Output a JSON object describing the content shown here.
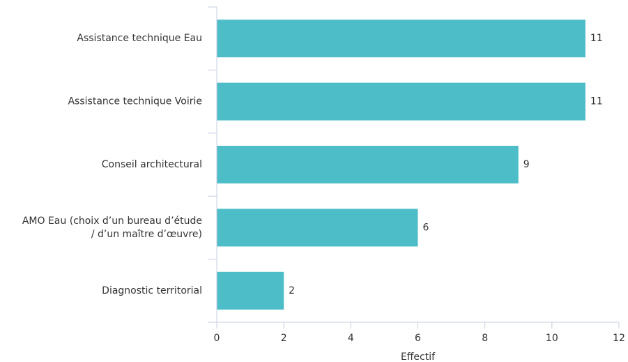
{
  "chart_data": {
    "type": "bar",
    "orientation": "horizontal",
    "categories": [
      [
        "Assistance technique Eau"
      ],
      [
        "Assistance technique Voirie"
      ],
      [
        "Conseil architectural"
      ],
      [
        "AMO Eau (choix d’un bureau d’étude",
        "/ d’un maître d’œuvre)"
      ],
      [
        "Diagnostic territorial"
      ]
    ],
    "values": [
      11,
      11,
      9,
      6,
      2
    ],
    "value_labels": [
      "11",
      "11",
      "9",
      "6",
      "2"
    ],
    "xlabel": "Effectif",
    "ylabel": "",
    "xlim": [
      0,
      12
    ],
    "xticks": [
      0,
      2,
      4,
      6,
      8,
      10,
      12
    ],
    "grid": false,
    "bar_color": "#4dbdc8",
    "axis_color": "#c9cde0"
  }
}
